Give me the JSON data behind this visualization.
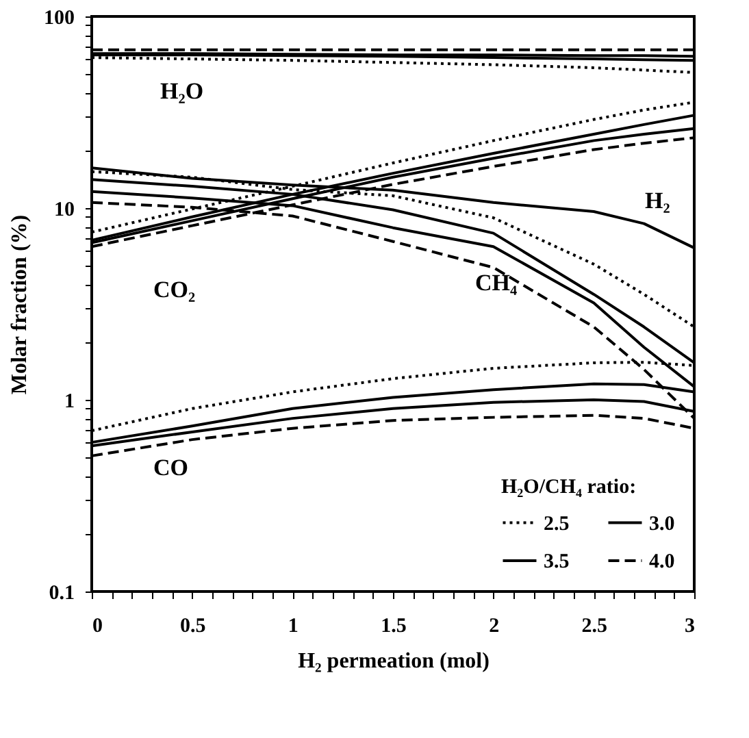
{
  "chart_data": {
    "type": "line",
    "xlabel": "H₂ permeation (mol)",
    "ylabel": "Molar fraction (%)",
    "legend_title": "H₂O/CH₄ ratio:",
    "legend": "bottom right",
    "log": "y",
    "marker": "none",
    "x": [
      0,
      0.5,
      1,
      1.5,
      2,
      2.5,
      2.75,
      3
    ],
    "xlim": [
      0,
      3
    ],
    "xticks": [
      0,
      {
        "value": 0.1,
        "label": null
      },
      {
        "value": 0.2,
        "label": null
      },
      {
        "value": 0.3,
        "label": null
      },
      {
        "value": 0.4,
        "label": null
      },
      0.5,
      {
        "value": 0.6,
        "label": null
      },
      {
        "value": 0.7,
        "label": null
      },
      {
        "value": 0.8,
        "label": null
      },
      {
        "value": 0.9,
        "label": null
      },
      1,
      {
        "value": 1.1,
        "label": null
      },
      {
        "value": 1.2,
        "label": null
      },
      {
        "value": 1.3,
        "label": null
      },
      {
        "value": 1.4,
        "label": null
      },
      1.5,
      {
        "value": 1.6,
        "label": null
      },
      {
        "value": 1.7,
        "label": null
      },
      {
        "value": 1.8,
        "label": null
      },
      {
        "value": 1.9,
        "label": null
      },
      2,
      {
        "value": 2.1,
        "label": null
      },
      {
        "value": 2.2,
        "label": null
      },
      {
        "value": 2.3,
        "label": null
      },
      {
        "value": 2.4,
        "label": null
      },
      2.5,
      {
        "value": 2.6,
        "label": null
      },
      {
        "value": 2.7,
        "label": null
      },
      {
        "value": 2.8,
        "label": null
      },
      {
        "value": 2.9,
        "label": null
      },
      3
    ],
    "ylim": [
      0.1,
      100
    ],
    "yticks": [
      0.1,
      {
        "value": 0.2,
        "label": null
      },
      {
        "value": 0.3,
        "label": null
      },
      {
        "value": 0.4,
        "label": null
      },
      {
        "value": 0.5,
        "label": null
      },
      {
        "value": 0.6,
        "label": null
      },
      {
        "value": 0.7,
        "label": null
      },
      {
        "value": 0.8,
        "label": null
      },
      {
        "value": 0.9,
        "label": null
      },
      1,
      {
        "value": 2,
        "label": null
      },
      {
        "value": 3,
        "label": null
      },
      {
        "value": 4,
        "label": null
      },
      {
        "value": 5,
        "label": null
      },
      {
        "value": 6,
        "label": null
      },
      {
        "value": 7,
        "label": null
      },
      {
        "value": 8,
        "label": null
      },
      {
        "value": 9,
        "label": null
      },
      10,
      {
        "value": 20,
        "label": null
      },
      {
        "value": 30,
        "label": null
      },
      {
        "value": 40,
        "label": null
      },
      {
        "value": 50,
        "label": null
      },
      {
        "value": 60,
        "label": null
      },
      {
        "value": 70,
        "label": null
      },
      {
        "value": 80,
        "label": null
      },
      {
        "value": 90,
        "label": null
      },
      100
    ],
    "series": [
      {
        "name": "2.5",
        "color": "#000000",
        "line_style": "dotted",
        "values": [
          61,
          60,
          59,
          57.5,
          56,
          54,
          52.5,
          51
        ]
      },
      {
        "name": "3.0",
        "color": "#000000",
        "line_style": "solid",
        "values": [
          63,
          63,
          62.5,
          62,
          61,
          60,
          59.5,
          59
        ]
      },
      {
        "name": "3.5",
        "color": "#000000",
        "line_style": "solid",
        "values": [
          64,
          64,
          63.5,
          63,
          63,
          62.5,
          62.5,
          62
        ]
      },
      {
        "name": "4.0",
        "color": "#000000",
        "line_style": "dashed",
        "values": [
          67,
          67,
          67,
          67,
          67,
          67,
          67,
          67
        ]
      },
      {
        "color": "#000000",
        "line_style": "dotted",
        "values": [
          7.5,
          9.9,
          13.0,
          17.2,
          22.5,
          29,
          32.5,
          35.7
        ]
      },
      {
        "color": "#000000",
        "line_style": "solid",
        "values": [
          6.8,
          9.0,
          11.8,
          15.2,
          19.3,
          24.3,
          27.3,
          30.5
        ]
      },
      {
        "color": "#000000",
        "line_style": "solid",
        "values": [
          6.6,
          8.6,
          11.2,
          14.5,
          18.2,
          22.5,
          24.3,
          26
        ]
      },
      {
        "color": "#000000",
        "line_style": "dashed",
        "values": [
          6.3,
          8.1,
          10.4,
          13.3,
          16.5,
          20.2,
          21.8,
          23.3
        ]
      },
      {
        "color": "#000000",
        "line_style": "solid",
        "values": [
          16.2,
          14.3,
          13.2,
          12.4,
          10.7,
          9.6,
          8.3,
          6.2
        ]
      },
      {
        "color": "#000000",
        "line_style": "dotted",
        "values": [
          15.5,
          14.5,
          12.5,
          11.6,
          8.9,
          5.1,
          3.55,
          2.4
        ]
      },
      {
        "color": "#000000",
        "line_style": "solid",
        "values": [
          14.1,
          13,
          11.8,
          9.8,
          7.4,
          3.55,
          2.4,
          1.56
        ]
      },
      {
        "color": "#000000",
        "line_style": "solid",
        "values": [
          12.2,
          11.3,
          10.3,
          7.9,
          6.3,
          3.2,
          1.88,
          1.17
        ]
      },
      {
        "color": "#000000",
        "line_style": "dashed",
        "values": [
          10.7,
          10.1,
          9.1,
          6.7,
          4.9,
          2.4,
          1.44,
          0.8
        ]
      },
      {
        "color": "#000000",
        "line_style": "dotted",
        "values": [
          0.69,
          0.9,
          1.1,
          1.29,
          1.46,
          1.56,
          1.57,
          1.51
        ]
      },
      {
        "color": "#000000",
        "line_style": "solid",
        "values": [
          0.6,
          0.73,
          0.9,
          1.03,
          1.13,
          1.21,
          1.2,
          1.1
        ]
      },
      {
        "color": "#000000",
        "line_style": "solid",
        "values": [
          0.575,
          0.68,
          0.8,
          0.9,
          0.97,
          1.0,
          0.98,
          0.87
        ]
      },
      {
        "color": "#000000",
        "line_style": "dashed",
        "values": [
          0.51,
          0.62,
          0.71,
          0.78,
          0.81,
          0.83,
          0.8,
          0.71
        ]
      }
    ],
    "annotations": [
      "H₂O",
      "CO₂",
      "H₂",
      "CH₄",
      "CO"
    ]
  }
}
